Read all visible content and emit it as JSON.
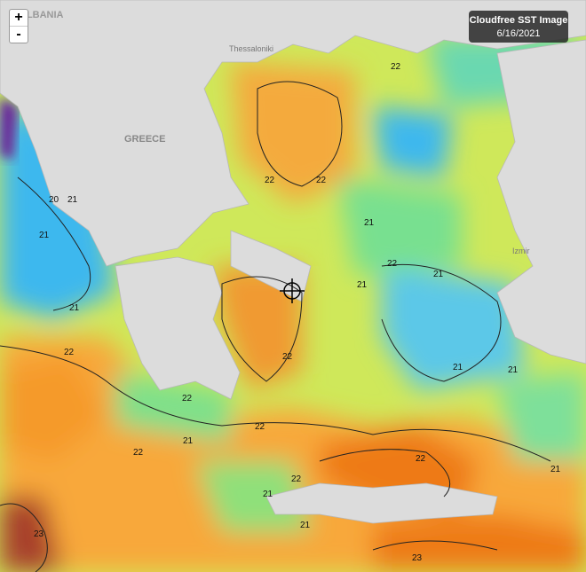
{
  "zoom": {
    "in": "+",
    "out": "-"
  },
  "info_box": {
    "title": "Cloudfree SST Image",
    "date": "6/16/2021"
  },
  "place_labels": [
    "ALBANIA",
    "GREECE",
    "Thessaloniki",
    "Izmir"
  ],
  "contour_labels": [
    "22",
    "22",
    "22",
    "21",
    "20",
    "21",
    "21",
    "21",
    "21",
    "21",
    "21",
    "21",
    "22",
    "22",
    "22",
    "22",
    "21",
    "22",
    "21",
    "22",
    "21",
    "22",
    "23",
    "23",
    "21",
    "22"
  ]
}
